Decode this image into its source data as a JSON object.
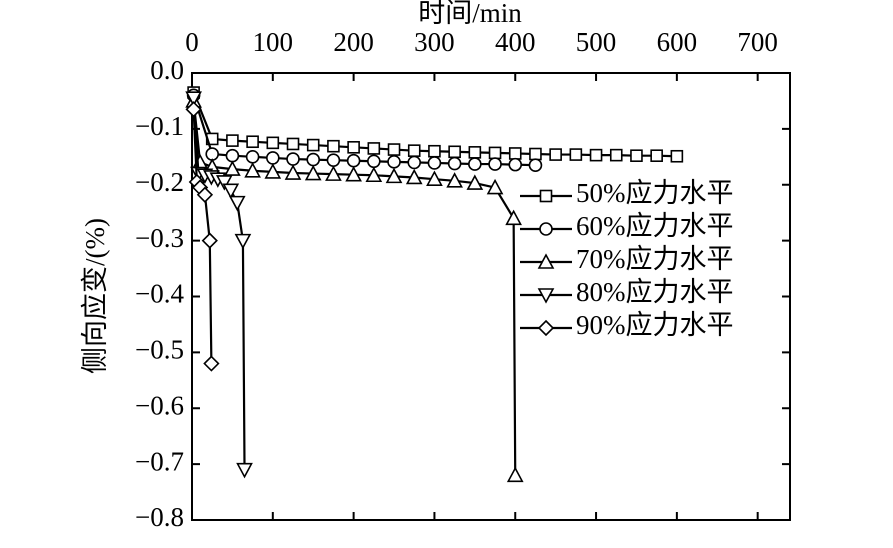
{
  "chart_data": {
    "type": "line",
    "x_label": "时间/min",
    "y_label": "侧向应变/(%)",
    "xlim": [
      0,
      740
    ],
    "xticks": [
      0,
      100,
      200,
      300,
      400,
      500,
      600,
      700
    ],
    "ylim": [
      -0.8,
      0
    ],
    "yticks": [
      {
        "value": 0,
        "label": "0.0"
      },
      {
        "value": -0.1,
        "label": "−0.1"
      },
      {
        "value": -0.2,
        "label": "−0.2"
      },
      {
        "value": -0.3,
        "label": "−0.3"
      },
      {
        "value": -0.4,
        "label": "−0.4"
      },
      {
        "value": -0.5,
        "label": "−0.5"
      },
      {
        "value": -0.6,
        "label": "−0.6"
      },
      {
        "value": -0.7,
        "label": "−0.7"
      },
      {
        "value": -0.8,
        "label": "−0.8"
      }
    ],
    "x_axis_position": "top",
    "legend": "right",
    "series": [
      {
        "name": "50%应力水平",
        "color": "#000000",
        "marker": "square",
        "x": [
          2,
          25,
          50,
          75,
          100,
          125,
          150,
          175,
          200,
          225,
          250,
          275,
          300,
          325,
          350,
          375,
          400,
          425,
          450,
          475,
          500,
          525,
          550,
          575,
          600
        ],
        "values": [
          -0.035,
          -0.118,
          -0.121,
          -0.123,
          -0.125,
          -0.127,
          -0.129,
          -0.131,
          -0.133,
          -0.135,
          -0.137,
          -0.139,
          -0.14,
          -0.141,
          -0.142,
          -0.143,
          -0.144,
          -0.145,
          -0.146,
          -0.146,
          -0.147,
          -0.147,
          -0.148,
          -0.148,
          -0.149
        ]
      },
      {
        "name": "60%应力水平",
        "color": "#000000",
        "marker": "circle",
        "x": [
          2,
          25,
          50,
          75,
          100,
          125,
          150,
          175,
          200,
          225,
          250,
          275,
          300,
          325,
          350,
          375,
          400,
          425
        ],
        "values": [
          -0.04,
          -0.145,
          -0.148,
          -0.15,
          -0.152,
          -0.154,
          -0.155,
          -0.156,
          -0.157,
          -0.158,
          -0.159,
          -0.16,
          -0.161,
          -0.162,
          -0.163,
          -0.163,
          -0.164,
          -0.165
        ]
      },
      {
        "name": "70%应力水平",
        "color": "#000000",
        "marker": "triangle-up",
        "x": [
          2,
          10,
          25,
          50,
          75,
          100,
          125,
          150,
          175,
          200,
          225,
          250,
          275,
          300,
          325,
          350,
          375,
          398,
          400
        ],
        "values": [
          -0.05,
          -0.16,
          -0.168,
          -0.172,
          -0.175,
          -0.177,
          -0.179,
          -0.18,
          -0.181,
          -0.182,
          -0.183,
          -0.185,
          -0.187,
          -0.19,
          -0.193,
          -0.197,
          -0.205,
          -0.26,
          -0.72
        ]
      },
      {
        "name": "80%应力水平",
        "color": "#000000",
        "marker": "triangle-down",
        "x": [
          2,
          8,
          16,
          24,
          32,
          40,
          48,
          56,
          63,
          65
        ],
        "values": [
          -0.045,
          -0.18,
          -0.183,
          -0.186,
          -0.19,
          -0.195,
          -0.21,
          -0.232,
          -0.3,
          -0.71
        ]
      },
      {
        "name": "90%应力水平",
        "color": "#000000",
        "marker": "diamond",
        "x": [
          2,
          6,
          10,
          16,
          22,
          24
        ],
        "values": [
          -0.065,
          -0.195,
          -0.205,
          -0.218,
          -0.3,
          -0.52
        ]
      }
    ]
  }
}
